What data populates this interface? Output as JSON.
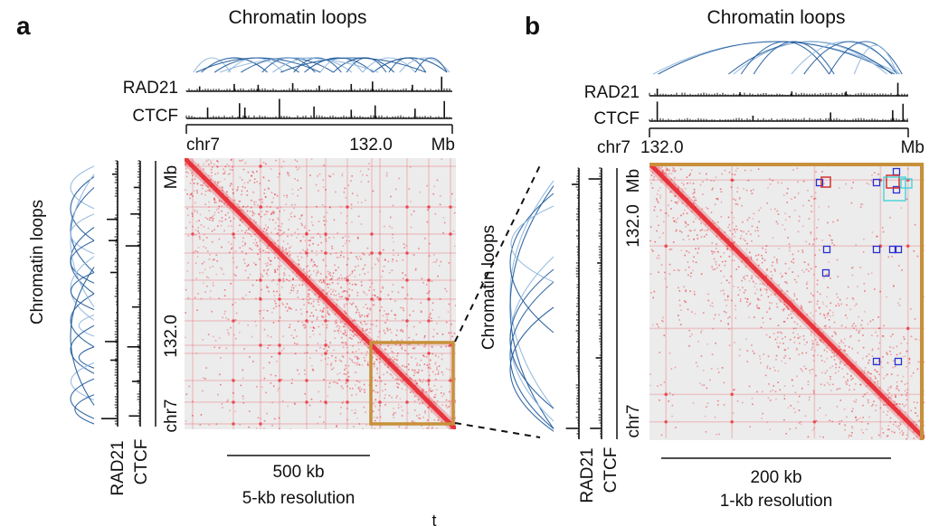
{
  "panel_a": {
    "letter": "a",
    "loops_title": "Chromatin loops",
    "track_rad21": "RAD21",
    "track_ctcf": "CTCF",
    "chrom": "chr7",
    "coord": "132.0",
    "unit": "Mb",
    "side_loops_title": "Chromatin loops",
    "side_rad21": "RAD21",
    "side_ctcf": "CTCF",
    "side_unit": "Mb",
    "side_coord": "132.0",
    "side_chrom": "chr7",
    "scale_label": "500 kb",
    "resolution": "5-kb resolution"
  },
  "panel_b": {
    "letter": "b",
    "loops_title": "Chromatin loops",
    "track_rad21": "RAD21",
    "track_ctcf": "CTCF",
    "chrom": "chr7",
    "coord": "132.0",
    "unit": "Mb",
    "side_loops_title": "Chromatin loops",
    "side_rad21": "RAD21",
    "side_ctcf": "CTCF",
    "side_unit": "Mb",
    "side_coord": "132.0",
    "side_chrom": "chr7",
    "scale_label": "200 kb",
    "resolution": "1-kb resolution"
  },
  "footer_glyph": "t",
  "colors": {
    "loop_dark": "#1f5a9a",
    "loop_light": "#8fb6dd",
    "contact": "#e8202a",
    "matrix_bg": "#ececec",
    "zoom_box": "#c8903a",
    "loop_call_blue": "#2b2fd0",
    "loop_call_red": "#d33030",
    "loop_call_cyan": "#3ad0d8"
  }
}
